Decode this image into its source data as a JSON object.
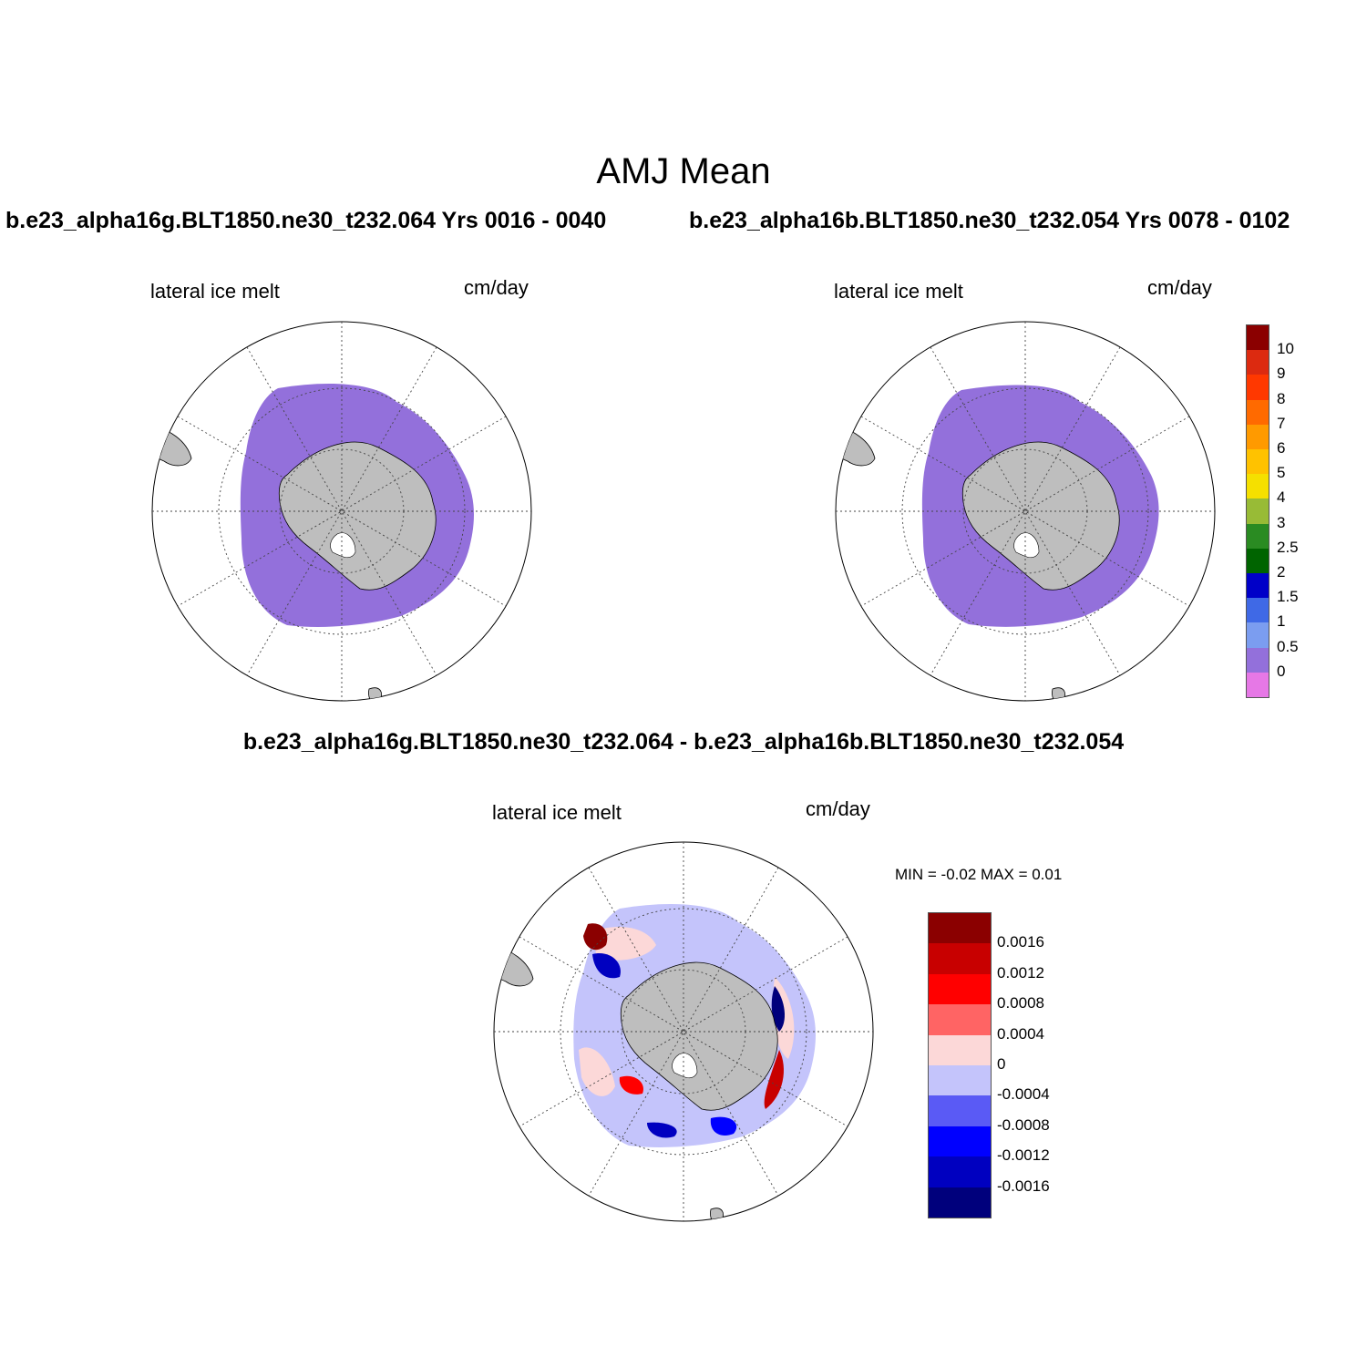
{
  "title": "AMJ Mean",
  "case_left": "b.e23_alpha16g.BLT1850.ne30_t232.064  Yrs 0016 - 0040",
  "case_right": "b.e23_alpha16b.BLT1850.ne30_t232.054  Yrs 0078 - 0102",
  "diff_title": "b.e23_alpha16g.BLT1850.ne30_t232.064 - b.e23_alpha16b.BLT1850.ne30_t232.054",
  "panels": {
    "left": {
      "variable": "lateral ice melt",
      "units": "cm/day"
    },
    "right": {
      "variable": "lateral ice melt",
      "units": "cm/day"
    },
    "diff": {
      "variable": "lateral ice melt",
      "units": "cm/day",
      "minmax": "MIN =  -0.02 MAX =   0.01"
    }
  },
  "colors": {
    "ice_field": "#9370db",
    "land": "#bebebe",
    "water": "#ffffff"
  },
  "colorbar_main": {
    "labels": [
      "10",
      "9",
      "8",
      "7",
      "6",
      "5",
      "4",
      "3",
      "2.5",
      "2",
      "1.5",
      "1",
      "0.5",
      "0"
    ],
    "colors": [
      "#8b0000",
      "#dc2a10",
      "#ff3800",
      "#ff6a00",
      "#ff9a00",
      "#ffc200",
      "#f5e000",
      "#98bb36",
      "#2a8b22",
      "#006400",
      "#0000c8",
      "#3f69e6",
      "#7b9df0",
      "#9370db",
      "#e678e6"
    ]
  },
  "colorbar_diff": {
    "labels": [
      "0.0016",
      "0.0012",
      "0.0008",
      "0.0004",
      "0",
      "-0.0004",
      "-0.0008",
      "-0.0012",
      "-0.0016"
    ],
    "colors": [
      "#8b0000",
      "#c80000",
      "#ff0000",
      "#ff6464",
      "#fcd8d8",
      "#c4c4fb",
      "#5a5af5",
      "#0000ff",
      "#0000c0",
      "#00007c"
    ]
  }
}
